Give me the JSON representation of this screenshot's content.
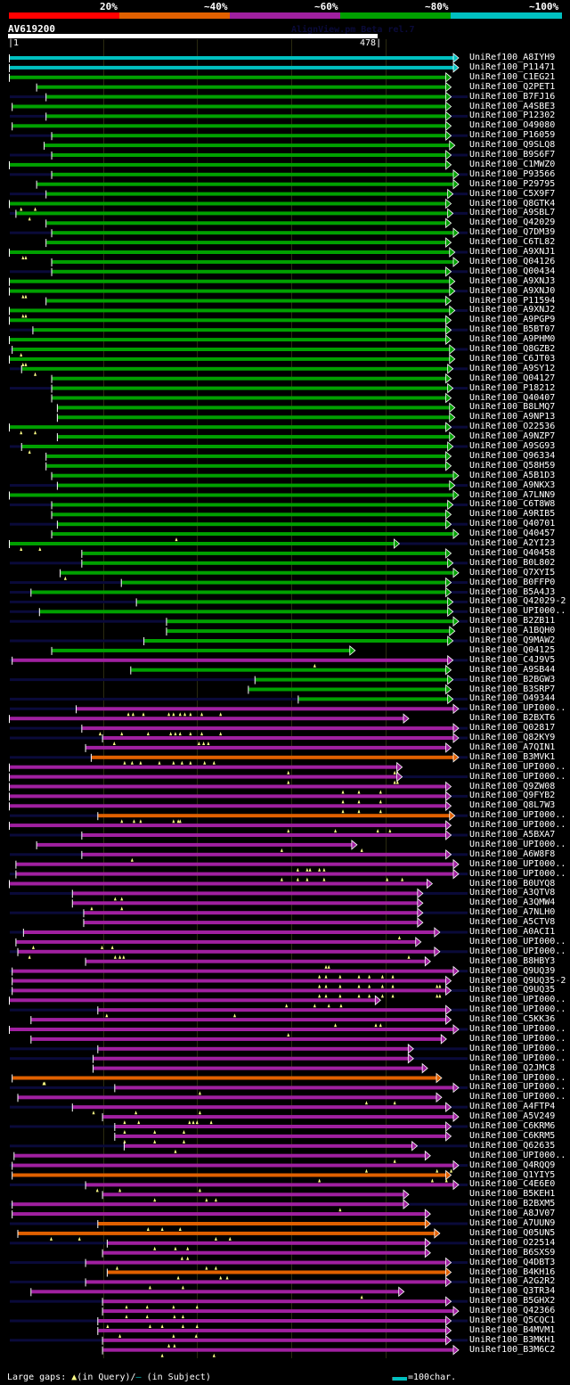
{
  "app": {
    "watermark": "AlignView.pm Beta rel.7"
  },
  "scale": {
    "labels": [
      "20%",
      "~40%",
      "~60%",
      "~80%",
      "~100%"
    ],
    "colors": [
      "#ff0000",
      "#e06000",
      "#a020a0",
      "#00a000",
      "#00c0c0"
    ]
  },
  "query": {
    "name": "AV619200",
    "start": "1",
    "end": "478",
    "length": 478
  },
  "colors": {
    "cyan": "#00c0c0",
    "green": "#00a000",
    "purple": "#a020a0",
    "orange": "#e06000",
    "unaligned": "#0a0a3a",
    "gap": "#ffff88"
  },
  "hits": [
    {
      "name": "UniRef100_A8IYH9",
      "c": "cyan",
      "s": 1,
      "e": 478,
      "u": 0
    },
    {
      "name": "UniRef100_P11471",
      "c": "cyan",
      "s": 1,
      "e": 478,
      "u": 0
    },
    {
      "name": "UniRef100_C1EG21",
      "c": "green",
      "s": 1,
      "e": 470,
      "u": 0
    },
    {
      "name": "UniRef100_Q2PET1",
      "c": "green",
      "s": 30,
      "e": 470,
      "u": 0
    },
    {
      "name": "UniRef100_B7FJ16",
      "c": "green",
      "s": 40,
      "e": 470,
      "u": 1
    },
    {
      "name": "UniRef100_A4SBE3",
      "c": "green",
      "s": 4,
      "e": 470,
      "u": 0
    },
    {
      "name": "UniRef100_P12302",
      "c": "green",
      "s": 40,
      "e": 470,
      "u": 1
    },
    {
      "name": "UniRef100_O49080",
      "c": "green",
      "s": 4,
      "e": 470,
      "u": 0
    },
    {
      "name": "UniRef100_P16059",
      "c": "green",
      "s": 46,
      "e": 470,
      "u": 1
    },
    {
      "name": "UniRef100_Q9SLQ8",
      "c": "green",
      "s": 38,
      "e": 474,
      "u": 0
    },
    {
      "name": "UniRef100_B9S6F7",
      "c": "green",
      "s": 46,
      "e": 470,
      "u": 1
    },
    {
      "name": "UniRef100_C1MWZ0",
      "c": "green",
      "s": 1,
      "e": 470,
      "u": 0
    },
    {
      "name": "UniRef100_P93566",
      "c": "green",
      "s": 46,
      "e": 478,
      "u": 1
    },
    {
      "name": "UniRef100_P29795",
      "c": "green",
      "s": 30,
      "e": 478,
      "u": 0
    },
    {
      "name": "UniRef100_C5X9F7",
      "c": "green",
      "s": 40,
      "e": 472,
      "u": 1
    },
    {
      "name": "UniRef100_Q8GTK4",
      "c": "green",
      "s": 1,
      "e": 470,
      "u": 0,
      "g": [
        13,
        28
      ]
    },
    {
      "name": "UniRef100_A9SBL7",
      "c": "green",
      "s": 8,
      "e": 472,
      "u": 1,
      "g": [
        22
      ]
    },
    {
      "name": "UniRef100_Q42029",
      "c": "green",
      "s": 40,
      "e": 470,
      "u": 0
    },
    {
      "name": "UniRef100_Q7DM39",
      "c": "green",
      "s": 46,
      "e": 478,
      "u": 1
    },
    {
      "name": "UniRef100_C6TL82",
      "c": "green",
      "s": 40,
      "e": 470,
      "u": 0
    },
    {
      "name": "UniRef100_A9XNJ1",
      "c": "green",
      "s": 1,
      "e": 474,
      "u": 1,
      "g": [
        15,
        18
      ]
    },
    {
      "name": "UniRef100_Q04126",
      "c": "green",
      "s": 46,
      "e": 478,
      "u": 0
    },
    {
      "name": "UniRef100_Q00434",
      "c": "green",
      "s": 46,
      "e": 470,
      "u": 1
    },
    {
      "name": "UniRef100_A9XNJ3",
      "c": "green",
      "s": 1,
      "e": 474,
      "u": 0
    },
    {
      "name": "UniRef100_A9XNJ0",
      "c": "green",
      "s": 1,
      "e": 474,
      "u": 1,
      "g": [
        15,
        18
      ]
    },
    {
      "name": "UniRef100_P11594",
      "c": "green",
      "s": 40,
      "e": 470,
      "u": 0
    },
    {
      "name": "UniRef100_A9XNJ2",
      "c": "green",
      "s": 1,
      "e": 474,
      "u": 1,
      "g": [
        15,
        18
      ]
    },
    {
      "name": "UniRef100_A9PGP9",
      "c": "green",
      "s": 1,
      "e": 470,
      "u": 0
    },
    {
      "name": "UniRef100_B5BT07",
      "c": "green",
      "s": 26,
      "e": 470,
      "u": 1
    },
    {
      "name": "UniRef100_A9PHM0",
      "c": "green",
      "s": 1,
      "e": 470,
      "u": 0
    },
    {
      "name": "UniRef100_Q8GZB2",
      "c": "green",
      "s": 4,
      "e": 474,
      "u": 1,
      "g": [
        13
      ]
    },
    {
      "name": "UniRef100_C6JT03",
      "c": "green",
      "s": 1,
      "e": 474,
      "u": 0,
      "g": [
        15,
        18
      ]
    },
    {
      "name": "UniRef100_A9SY12",
      "c": "green",
      "s": 14,
      "e": 472,
      "u": 1,
      "g": [
        28
      ]
    },
    {
      "name": "UniRef100_Q04127",
      "c": "green",
      "s": 46,
      "e": 470,
      "u": 0
    },
    {
      "name": "UniRef100_P18212",
      "c": "green",
      "s": 46,
      "e": 472,
      "u": 1
    },
    {
      "name": "UniRef100_Q40407",
      "c": "green",
      "s": 46,
      "e": 470,
      "u": 0
    },
    {
      "name": "UniRef100_B8LMQ7",
      "c": "green",
      "s": 52,
      "e": 474,
      "u": 0
    },
    {
      "name": "UniRef100_A9NP13",
      "c": "green",
      "s": 52,
      "e": 474,
      "u": 0
    },
    {
      "name": "UniRef100_O22536",
      "c": "green",
      "s": 1,
      "e": 470,
      "u": 1,
      "g": [
        13,
        28
      ]
    },
    {
      "name": "UniRef100_A9NZP7",
      "c": "green",
      "s": 52,
      "e": 474,
      "u": 0
    },
    {
      "name": "UniRef100_A9SG93",
      "c": "green",
      "s": 14,
      "e": 472,
      "u": 1,
      "g": [
        22
      ]
    },
    {
      "name": "UniRef100_Q96334",
      "c": "green",
      "s": 40,
      "e": 470,
      "u": 0
    },
    {
      "name": "UniRef100_Q58H59",
      "c": "green",
      "s": 40,
      "e": 470,
      "u": 0
    },
    {
      "name": "UniRef100_A5B1D3",
      "c": "green",
      "s": 46,
      "e": 478,
      "u": 0
    },
    {
      "name": "UniRef100_A9NKX3",
      "c": "green",
      "s": 52,
      "e": 474,
      "u": 1
    },
    {
      "name": "UniRef100_A7LNN9",
      "c": "green",
      "s": 1,
      "e": 478,
      "u": 0
    },
    {
      "name": "UniRef100_C6T8W8",
      "c": "green",
      "s": 46,
      "e": 472,
      "u": 1
    },
    {
      "name": "UniRef100_A9RIB5",
      "c": "green",
      "s": 46,
      "e": 470,
      "u": 0
    },
    {
      "name": "UniRef100_Q40701",
      "c": "green",
      "s": 52,
      "e": 470,
      "u": 1
    },
    {
      "name": "UniRef100_Q40457",
      "c": "green",
      "s": 46,
      "e": 478,
      "u": 0,
      "g": [
        178
      ]
    },
    {
      "name": "UniRef100_A2YI23",
      "c": "green",
      "s": 1,
      "e": 415,
      "u": 1,
      "g": [
        13,
        33
      ]
    },
    {
      "name": "UniRef100_Q40458",
      "c": "green",
      "s": 78,
      "e": 470,
      "u": 0
    },
    {
      "name": "UniRef100_B0L802",
      "c": "green",
      "s": 78,
      "e": 472,
      "u": 1
    },
    {
      "name": "UniRef100_Q7XYI5",
      "c": "green",
      "s": 55,
      "e": 478,
      "u": 0,
      "g": [
        60
      ]
    },
    {
      "name": "UniRef100_B0FFP0",
      "c": "green",
      "s": 120,
      "e": 470,
      "u": 1
    },
    {
      "name": "UniRef100_B5A4J3",
      "c": "green",
      "s": 24,
      "e": 470,
      "u": 1
    },
    {
      "name": "UniRef100_Q42029-2",
      "c": "green",
      "s": 136,
      "e": 472,
      "u": 1
    },
    {
      "name": "UniRef100_UPI000..",
      "c": "green",
      "s": 33,
      "e": 472,
      "u": 1
    },
    {
      "name": "UniRef100_B2ZB11",
      "c": "green",
      "s": 168,
      "e": 478,
      "u": 1
    },
    {
      "name": "UniRef100_A1BQH0",
      "c": "green",
      "s": 168,
      "e": 474,
      "u": 0
    },
    {
      "name": "UniRef100_Q9MAW2",
      "c": "green",
      "s": 144,
      "e": 472,
      "u": 1
    },
    {
      "name": "UniRef100_Q04125",
      "c": "green",
      "s": 46,
      "e": 368,
      "u": 0
    },
    {
      "name": "UniRef100_C4J9V5",
      "c": "purple",
      "s": 4,
      "e": 472,
      "u": 1,
      "g": [
        325
      ]
    },
    {
      "name": "UniRef100_A9SB44",
      "c": "green",
      "s": 130,
      "e": 470,
      "u": 0
    },
    {
      "name": "UniRef100_B2BGW3",
      "c": "green",
      "s": 262,
      "e": 472,
      "u": 1
    },
    {
      "name": "UniRef100_B3SRP7",
      "c": "green",
      "s": 255,
      "e": 470,
      "u": 0
    },
    {
      "name": "UniRef100_O49344",
      "c": "green",
      "s": 308,
      "e": 472,
      "u": 1
    },
    {
      "name": "UniRef100_UPI000..",
      "c": "purple",
      "s": 72,
      "e": 478,
      "u": 1,
      "g": [
        127,
        132,
        143,
        170,
        175,
        182,
        187,
        193,
        205,
        225
      ]
    },
    {
      "name": "UniRef100_B2BXT6",
      "c": "purple",
      "s": 1,
      "e": 425,
      "u": 0
    },
    {
      "name": "UniRef100_Q02817",
      "c": "purple",
      "s": 78,
      "e": 478,
      "u": 1,
      "g": [
        97,
        120,
        148,
        172,
        177,
        182,
        193,
        205,
        225
      ]
    },
    {
      "name": "UniRef100_Q82KY9",
      "c": "purple",
      "s": 100,
      "e": 478,
      "u": 1,
      "g": [
        112,
        202,
        207,
        212
      ]
    },
    {
      "name": "UniRef100_A7QIN1",
      "c": "purple",
      "s": 82,
      "e": 470,
      "u": 0
    },
    {
      "name": "UniRef100_B3MVK1",
      "c": "orange",
      "s": 88,
      "e": 478,
      "u": 1,
      "g": [
        123,
        131,
        140,
        160,
        175,
        184,
        193,
        208,
        218
      ]
    },
    {
      "name": "UniRef100_UPI000..",
      "c": "purple",
      "s": 1,
      "e": 418,
      "u": 0,
      "g": [
        297,
        410,
        413
      ]
    },
    {
      "name": "UniRef100_UPI000..",
      "c": "purple",
      "s": 1,
      "e": 418,
      "u": 1,
      "g": [
        297,
        410,
        413
      ]
    },
    {
      "name": "UniRef100_Q9ZW08",
      "c": "purple",
      "s": 1,
      "e": 470,
      "u": 0,
      "g": [
        355,
        372,
        395
      ]
    },
    {
      "name": "UniRef100_Q9FYB2",
      "c": "purple",
      "s": 1,
      "e": 470,
      "u": 1,
      "g": [
        355,
        372,
        395
      ]
    },
    {
      "name": "UniRef100_Q8L7W3",
      "c": "purple",
      "s": 1,
      "e": 470,
      "u": 0,
      "g": [
        355,
        372,
        395
      ]
    },
    {
      "name": "UniRef100_UPI000..",
      "c": "orange",
      "s": 95,
      "e": 474,
      "u": 1,
      "g": [
        120,
        133,
        140,
        175,
        180,
        182
      ]
    },
    {
      "name": "UniRef100_UPI000..",
      "c": "purple",
      "s": 1,
      "e": 470,
      "u": 0,
      "g": [
        297,
        347,
        392,
        405
      ]
    },
    {
      "name": "UniRef100_A5BXA7",
      "c": "purple",
      "s": 78,
      "e": 470,
      "u": 1
    },
    {
      "name": "UniRef100_UPI000..",
      "c": "purple",
      "s": 30,
      "e": 370,
      "u": 0,
      "g": [
        290,
        375
      ]
    },
    {
      "name": "UniRef100_A6W8F8",
      "c": "purple",
      "s": 78,
      "e": 470,
      "u": 1,
      "g": [
        131
      ]
    },
    {
      "name": "UniRef100_UPI000..",
      "c": "purple",
      "s": 8,
      "e": 478,
      "u": 0,
      "g": [
        307,
        317,
        320,
        330,
        335
      ]
    },
    {
      "name": "UniRef100_UPI000..",
      "c": "purple",
      "s": 8,
      "e": 478,
      "u": 1,
      "g": [
        290,
        307,
        317,
        335,
        402,
        418
      ]
    },
    {
      "name": "UniRef100_B0UYQ8",
      "c": "purple",
      "s": 1,
      "e": 450,
      "u": 0
    },
    {
      "name": "UniRef100_A3QTV8",
      "c": "purple",
      "s": 68,
      "e": 440,
      "u": 1,
      "g": [
        113,
        120
      ]
    },
    {
      "name": "UniRef100_A3QMW4",
      "c": "purple",
      "s": 68,
      "e": 440,
      "u": 0,
      "g": [
        88,
        120
      ]
    },
    {
      "name": "UniRef100_A7NLH0",
      "c": "purple",
      "s": 80,
      "e": 440,
      "u": 1
    },
    {
      "name": "UniRef100_A5CTV8",
      "c": "purple",
      "s": 80,
      "e": 440,
      "u": 0
    },
    {
      "name": "UniRef100_A0ACI1",
      "c": "purple",
      "s": 16,
      "e": 458,
      "u": 1,
      "g": [
        415
      ]
    },
    {
      "name": "UniRef100_UPI000..",
      "c": "purple",
      "s": 8,
      "e": 438,
      "u": 0,
      "g": [
        26,
        99,
        110
      ]
    },
    {
      "name": "UniRef100_UPI000..",
      "c": "purple",
      "s": 10,
      "e": 458,
      "u": 1,
      "g": [
        22,
        113,
        118,
        122,
        425
      ]
    },
    {
      "name": "UniRef100_B8HBY3",
      "c": "purple",
      "s": 82,
      "e": 448,
      "u": 0,
      "g": [
        337,
        340
      ]
    },
    {
      "name": "UniRef100_Q9UQ39",
      "c": "purple",
      "s": 4,
      "e": 478,
      "u": 1,
      "g": [
        330,
        337,
        352,
        372,
        383,
        397,
        408
      ]
    },
    {
      "name": "UniRef100_Q9UQ35-2",
      "c": "purple",
      "s": 4,
      "e": 470,
      "u": 0,
      "g": [
        330,
        337,
        352,
        372,
        383,
        397,
        408,
        455,
        458
      ]
    },
    {
      "name": "UniRef100_Q9UQ35",
      "c": "purple",
      "s": 4,
      "e": 470,
      "u": 1,
      "g": [
        330,
        337,
        352,
        372,
        383,
        397,
        408,
        455,
        458
      ]
    },
    {
      "name": "UniRef100_UPI000..",
      "c": "purple",
      "s": 1,
      "e": 395,
      "u": 0,
      "g": [
        295,
        325,
        340,
        353
      ]
    },
    {
      "name": "UniRef100_UPI000..",
      "c": "purple",
      "s": 95,
      "e": 470,
      "u": 1,
      "g": [
        104,
        240
      ]
    },
    {
      "name": "UniRef100_C5KK36",
      "c": "purple",
      "s": 24,
      "e": 470,
      "u": 0,
      "g": [
        347,
        390,
        395
      ]
    },
    {
      "name": "UniRef100_UPI000..",
      "c": "purple",
      "s": 1,
      "e": 478,
      "u": 1,
      "g": [
        297
      ]
    },
    {
      "name": "UniRef100_UPI000..",
      "c": "purple",
      "s": 24,
      "e": 465,
      "u": 0
    },
    {
      "name": "UniRef100_UPI000..",
      "c": "purple",
      "s": 95,
      "e": 430,
      "u": 1
    },
    {
      "name": "UniRef100_UPI000..",
      "c": "purple",
      "s": 90,
      "e": 430,
      "u": 1
    },
    {
      "name": "UniRef100_Q2JMC8",
      "c": "purple",
      "s": 90,
      "e": 445,
      "u": 0
    },
    {
      "name": "UniRef100_UPI000..",
      "c": "orange",
      "s": 4,
      "e": 460,
      "u": 0,
      "g": [
        37,
        38
      ]
    },
    {
      "name": "UniRef100_UPI000..",
      "c": "purple",
      "s": 113,
      "e": 478,
      "u": 1,
      "g": [
        203
      ]
    },
    {
      "name": "UniRef100_UPI000..",
      "c": "purple",
      "s": 10,
      "e": 460,
      "u": 0,
      "g": [
        380,
        410
      ]
    },
    {
      "name": "UniRef100_A4FTP4",
      "c": "purple",
      "s": 68,
      "e": 470,
      "u": 1,
      "g": [
        90,
        135,
        203
      ]
    },
    {
      "name": "UniRef100_A5V249",
      "c": "purple",
      "s": 100,
      "e": 478,
      "u": 0,
      "g": [
        123,
        138,
        192,
        196,
        200,
        215
      ]
    },
    {
      "name": "UniRef100_C6KRM6",
      "c": "purple",
      "s": 113,
      "e": 470,
      "u": 1,
      "g": [
        123,
        155,
        186
      ]
    },
    {
      "name": "UniRef100_C6KRM5",
      "c": "purple",
      "s": 113,
      "e": 470,
      "u": 0,
      "g": [
        123,
        155,
        186
      ]
    },
    {
      "name": "UniRef100_Q62635",
      "c": "purple",
      "s": 123,
      "e": 434,
      "u": 1,
      "g": [
        177
      ]
    },
    {
      "name": "UniRef100_UPI000..",
      "c": "purple",
      "s": 6,
      "e": 448,
      "u": 0,
      "g": [
        410
      ]
    },
    {
      "name": "UniRef100_Q4RQQ9",
      "c": "purple",
      "s": 4,
      "e": 478,
      "u": 1,
      "g": [
        380,
        455,
        470
      ]
    },
    {
      "name": "UniRef100_Q1YIY5",
      "c": "orange",
      "s": 4,
      "e": 470,
      "u": 0,
      "g": [
        330,
        450,
        465
      ]
    },
    {
      "name": "UniRef100_C4E6E0",
      "c": "purple",
      "s": 82,
      "e": 478,
      "u": 1,
      "g": [
        94,
        118,
        203
      ]
    },
    {
      "name": "UniRef100_B5KEH1",
      "c": "purple",
      "s": 100,
      "e": 425,
      "u": 0,
      "g": [
        155,
        210,
        220
      ]
    },
    {
      "name": "UniRef100_B2BXM5",
      "c": "purple",
      "s": 4,
      "e": 425,
      "u": 1,
      "g": [
        352
      ]
    },
    {
      "name": "UniRef100_A8JV07",
      "c": "purple",
      "s": 4,
      "e": 448,
      "u": 0
    },
    {
      "name": "UniRef100_A7UUN9",
      "c": "orange",
      "s": 95,
      "e": 448,
      "u": 1,
      "g": [
        148,
        163,
        182
      ]
    },
    {
      "name": "UniRef100_Q05UN5",
      "c": "orange",
      "s": 10,
      "e": 458,
      "u": 0,
      "g": [
        45,
        75,
        220,
        235
      ]
    },
    {
      "name": "UniRef100_O22514",
      "c": "purple",
      "s": 105,
      "e": 448,
      "u": 1,
      "g": [
        155,
        177,
        190
      ]
    },
    {
      "name": "UniRef100_B6SXS9",
      "c": "purple",
      "s": 100,
      "e": 448,
      "u": 0,
      "g": [
        184,
        190
      ]
    },
    {
      "name": "UniRef100_Q4DBT3",
      "c": "purple",
      "s": 82,
      "e": 470,
      "u": 1,
      "g": [
        115,
        210,
        220
      ]
    },
    {
      "name": "UniRef100_B4KH16",
      "c": "orange",
      "s": 105,
      "e": 470,
      "u": 0,
      "g": [
        180,
        225,
        232
      ]
    },
    {
      "name": "UniRef100_A2G2R2",
      "c": "purple",
      "s": 82,
      "e": 470,
      "u": 1,
      "g": [
        150,
        185
      ]
    },
    {
      "name": "UniRef100_Q3TR34",
      "c": "purple",
      "s": 24,
      "e": 420,
      "u": 0,
      "g": [
        375
      ]
    },
    {
      "name": "UniRef100_B5GHX2",
      "c": "purple",
      "s": 100,
      "e": 470,
      "u": 1,
      "g": [
        125,
        147,
        175,
        200
      ]
    },
    {
      "name": "UniRef100_Q42366",
      "c": "purple",
      "s": 100,
      "e": 478,
      "u": 0,
      "g": [
        125,
        147,
        176,
        185
      ]
    },
    {
      "name": "UniRef100_Q5CQC1",
      "c": "purple",
      "s": 95,
      "e": 470,
      "u": 1,
      "g": [
        105,
        150,
        163,
        185,
        200
      ]
    },
    {
      "name": "UniRef100_B4MVM1",
      "c": "purple",
      "s": 95,
      "e": 470,
      "u": 0,
      "g": [
        118,
        175,
        199
      ]
    },
    {
      "name": "UniRef100_B3MKH1",
      "c": "purple",
      "s": 100,
      "e": 470,
      "u": 1,
      "g": [
        170,
        176
      ]
    },
    {
      "name": "UniRef100_B3M6C2",
      "c": "purple",
      "s": 100,
      "e": 478,
      "u": 0,
      "g": [
        163,
        218
      ]
    }
  ],
  "footer": {
    "gaps_label": "Large gaps:",
    "in_query": "(in Query)/",
    "in_subject": "(in Subject)",
    "query_glyph": "▲",
    "subject_glyph": "–",
    "scale_legend": "=100char."
  }
}
